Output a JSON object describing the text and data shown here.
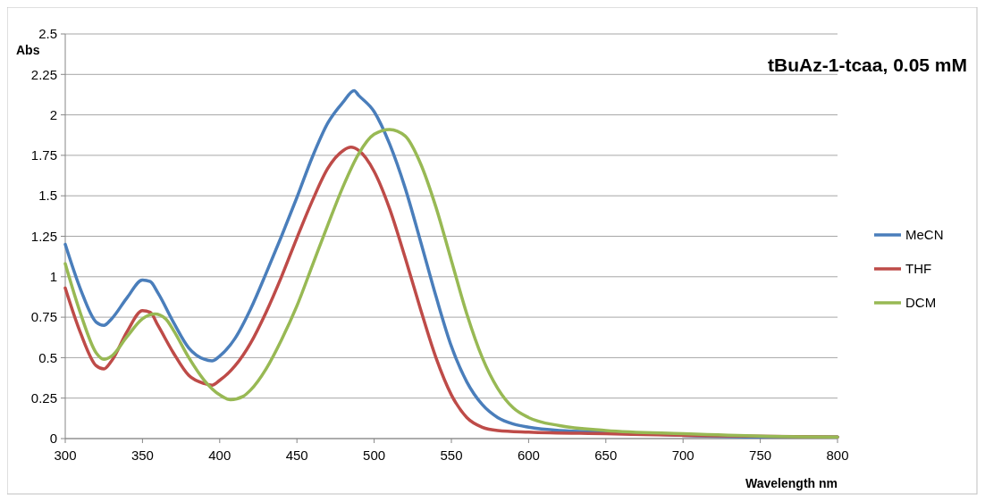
{
  "chart_data": {
    "type": "line",
    "title": "tBuAz-1-tcaa, 0.05 mM",
    "xlabel": "Wavelength nm",
    "ylabel": "Abs",
    "xlim": [
      300,
      800
    ],
    "xticks": [
      300,
      350,
      400,
      450,
      500,
      550,
      600,
      650,
      700,
      750,
      800
    ],
    "ylim": [
      0,
      2.5
    ],
    "yticks": [
      0,
      0.25,
      0.5,
      0.75,
      1,
      1.25,
      1.5,
      1.75,
      2,
      2.25,
      2.5
    ],
    "grid": "y",
    "legend": "right",
    "marker": "none",
    "line_style": "solid",
    "series": [
      {
        "name": "MeCN",
        "color": "#4a7ebb",
        "x": [
          300,
          310,
          320,
          325,
          330,
          340,
          350,
          355,
          360,
          370,
          380,
          390,
          395,
          400,
          410,
          420,
          430,
          440,
          450,
          460,
          470,
          480,
          487,
          490,
          500,
          510,
          520,
          530,
          540,
          550,
          560,
          570,
          580,
          590,
          600,
          620,
          650,
          700,
          750,
          800
        ],
        "values": [
          1.2,
          0.92,
          0.72,
          0.7,
          0.74,
          0.87,
          0.98,
          0.97,
          0.9,
          0.72,
          0.56,
          0.49,
          0.48,
          0.51,
          0.62,
          0.8,
          1.02,
          1.25,
          1.49,
          1.74,
          1.95,
          2.08,
          2.15,
          2.12,
          2.02,
          1.82,
          1.55,
          1.22,
          0.88,
          0.57,
          0.35,
          0.21,
          0.13,
          0.09,
          0.07,
          0.05,
          0.04,
          0.02,
          0.01,
          0.01
        ]
      },
      {
        "name": "THF",
        "color": "#be4b48",
        "x": [
          300,
          310,
          320,
          325,
          330,
          340,
          350,
          355,
          360,
          370,
          380,
          390,
          395,
          400,
          410,
          420,
          430,
          440,
          450,
          460,
          470,
          480,
          485,
          490,
          500,
          510,
          520,
          530,
          540,
          550,
          560,
          570,
          580,
          600,
          650,
          700,
          800
        ],
        "values": [
          0.93,
          0.65,
          0.45,
          0.43,
          0.48,
          0.66,
          0.79,
          0.78,
          0.7,
          0.53,
          0.39,
          0.34,
          0.33,
          0.36,
          0.45,
          0.59,
          0.78,
          1.0,
          1.24,
          1.47,
          1.67,
          1.78,
          1.8,
          1.78,
          1.65,
          1.42,
          1.12,
          0.8,
          0.5,
          0.27,
          0.13,
          0.07,
          0.05,
          0.04,
          0.03,
          0.02,
          0.01
        ]
      },
      {
        "name": "DCM",
        "color": "#98b954",
        "x": [
          300,
          310,
          320,
          325,
          330,
          340,
          350,
          358,
          365,
          370,
          380,
          390,
          400,
          407,
          415,
          420,
          430,
          440,
          450,
          460,
          470,
          480,
          490,
          500,
          510,
          520,
          530,
          540,
          550,
          560,
          570,
          580,
          590,
          600,
          620,
          650,
          700,
          750,
          800
        ],
        "values": [
          1.08,
          0.77,
          0.53,
          0.49,
          0.51,
          0.63,
          0.74,
          0.77,
          0.74,
          0.67,
          0.5,
          0.36,
          0.27,
          0.24,
          0.26,
          0.3,
          0.43,
          0.61,
          0.82,
          1.07,
          1.32,
          1.56,
          1.76,
          1.88,
          1.91,
          1.87,
          1.7,
          1.43,
          1.1,
          0.77,
          0.5,
          0.31,
          0.19,
          0.13,
          0.08,
          0.05,
          0.03,
          0.015,
          0.01
        ]
      }
    ]
  }
}
